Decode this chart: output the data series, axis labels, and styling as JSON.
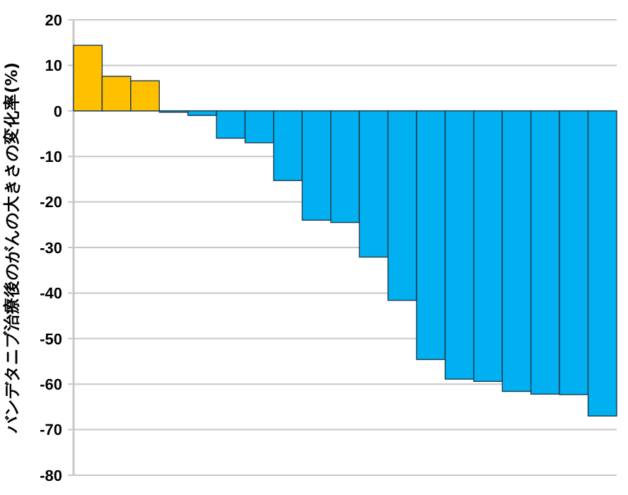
{
  "chart_data": {
    "type": "bar",
    "ylabel": "バンデタニブ治療後のがんの大きさの変化率(%)",
    "categories": [
      null,
      null,
      null,
      null,
      null,
      null,
      null,
      null,
      null,
      null,
      null,
      null,
      null,
      null,
      null,
      null,
      null,
      null,
      null
    ],
    "values": [
      14.4,
      7.6,
      6.6,
      -0.3,
      -1.0,
      -6.0,
      -7.0,
      -15.3,
      -24.0,
      -24.5,
      -32.1,
      -41.6,
      -54.6,
      -58.9,
      -59.4,
      -61.6,
      -62.2,
      -62.3,
      -67.0
    ],
    "colors": [
      "#ffc000",
      "#ffc000",
      "#ffc000",
      "#00b0f0",
      "#00b0f0",
      "#00b0f0",
      "#00b0f0",
      "#00b0f0",
      "#00b0f0",
      "#00b0f0",
      "#00b0f0",
      "#00b0f0",
      "#00b0f0",
      "#00b0f0",
      "#00b0f0",
      "#00b0f0",
      "#00b0f0",
      "#00b0f0",
      "#00b0f0"
    ],
    "ylim": [
      -80,
      20
    ],
    "yticks": [
      20,
      10,
      0,
      -10,
      -20,
      -30,
      -40,
      -50,
      -60,
      -70,
      -80
    ],
    "grid": "y"
  }
}
